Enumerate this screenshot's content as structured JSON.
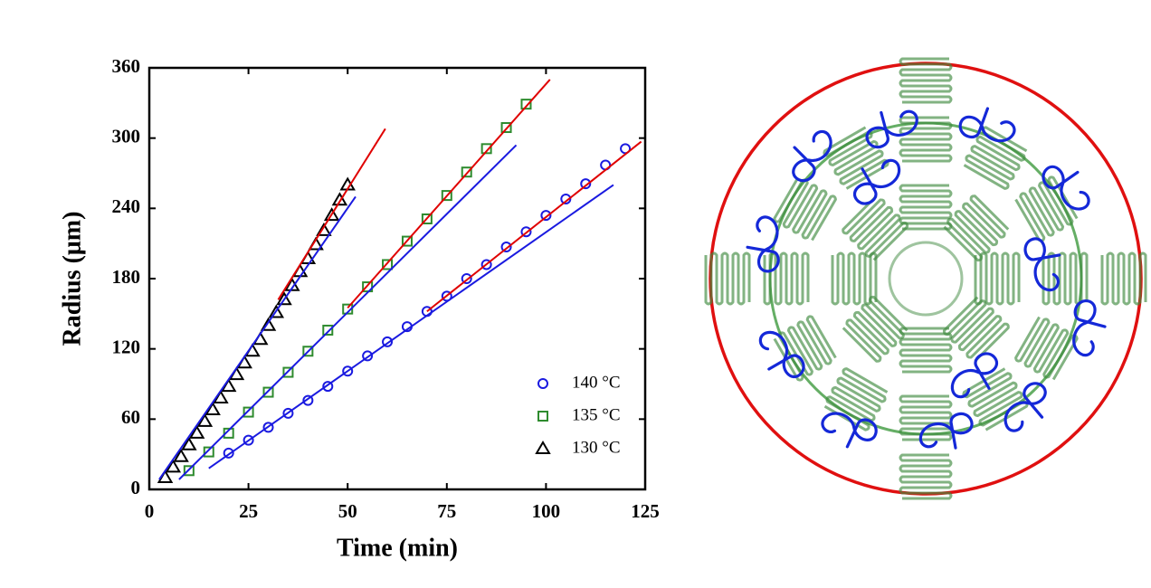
{
  "chart_data": {
    "type": "scatter",
    "xlabel": "Time (min)",
    "ylabel": "Radius (μm)",
    "xlim": [
      0,
      125
    ],
    "xticks": [
      0,
      25,
      50,
      75,
      100,
      125
    ],
    "ylim": [
      0,
      360
    ],
    "yticks": [
      0,
      60,
      120,
      180,
      240,
      300,
      360
    ],
    "legend": "lower right",
    "series": [
      {
        "name": "140 °C",
        "color": "#1a1ae0",
        "marker": "circle",
        "x": [
          20,
          25,
          30,
          35,
          40,
          45,
          50,
          55,
          60,
          65,
          70,
          75,
          80,
          85,
          90,
          95,
          100,
          105,
          110,
          115,
          120
        ],
        "values": [
          31,
          42,
          53,
          65,
          76,
          88,
          101,
          114,
          126,
          139,
          152,
          165,
          180,
          192,
          207,
          220,
          234,
          248,
          261,
          277,
          291
        ]
      },
      {
        "name": "135 °C",
        "color": "#2e8b2e",
        "marker": "square",
        "x": [
          10,
          15,
          20,
          25,
          30,
          35,
          40,
          45,
          50,
          55,
          60,
          65,
          70,
          75,
          80,
          85,
          90,
          95
        ],
        "values": [
          16,
          32,
          48,
          66,
          83,
          100,
          118,
          136,
          154,
          173,
          192,
          212,
          231,
          251,
          271,
          291,
          309,
          329
        ]
      },
      {
        "name": "130 °C",
        "color": "#000000",
        "marker": "triangle",
        "x": [
          4,
          6,
          8,
          10,
          12,
          14,
          16,
          18,
          20,
          22,
          24,
          26,
          28,
          30,
          32,
          34,
          36,
          38,
          40,
          42,
          44,
          46,
          48,
          50
        ],
        "values": [
          10,
          19,
          28,
          38,
          48,
          58,
          68,
          78,
          88,
          98,
          108,
          118,
          128,
          140,
          151,
          162,
          174,
          186,
          197,
          209,
          221,
          234,
          247,
          260
        ]
      }
    ],
    "fits": [
      {
        "color": "#1a1ae0",
        "x": [
          15,
          117
        ],
        "y": [
          18,
          260
        ]
      },
      {
        "color": "#e00000",
        "x": [
          70,
          124
        ],
        "y": [
          152,
          297
        ]
      },
      {
        "color": "#1a1ae0",
        "x": [
          7.5,
          92.5
        ],
        "y": [
          8.5,
          294
        ]
      },
      {
        "color": "#e00000",
        "x": [
          50,
          101
        ],
        "y": [
          155,
          350
        ]
      },
      {
        "color": "#1a1ae0",
        "x": [
          2.5,
          52
        ],
        "y": [
          8.5,
          250
        ]
      },
      {
        "color": "#e00000",
        "x": [
          32.5,
          59.5
        ],
        "y": [
          162,
          308
        ]
      }
    ]
  }
}
